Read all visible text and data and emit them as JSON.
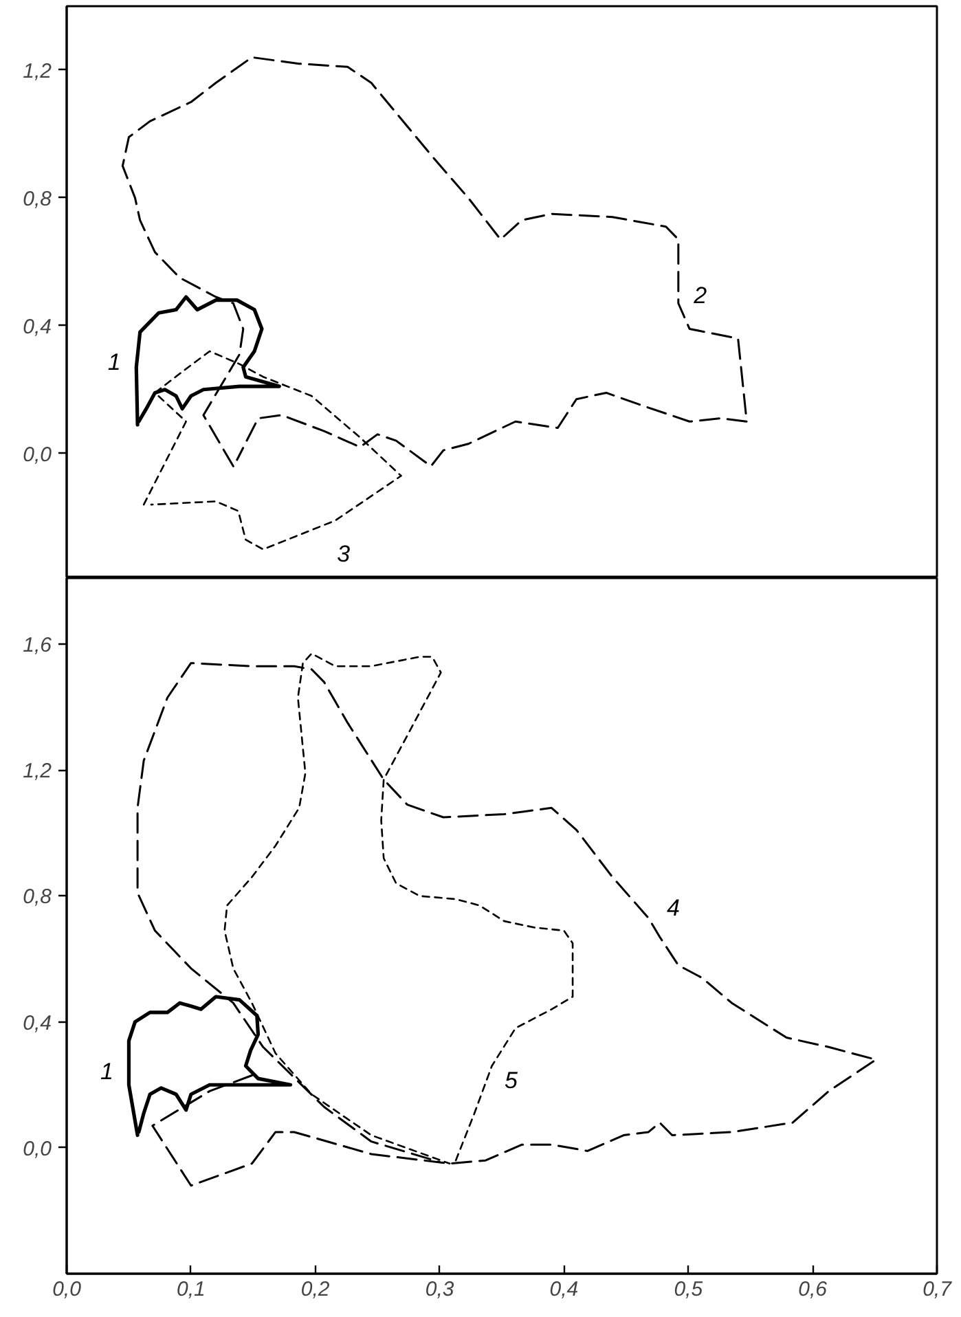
{
  "chart_data": [
    {
      "type": "line",
      "xlim": [
        0,
        0.7
      ],
      "ylim": [
        -0.39,
        1.4
      ],
      "tick_labels": "y",
      "grid": false,
      "yticks": [
        {
          "value": 0,
          "label": "0,0"
        },
        {
          "value": 0.4,
          "label": "0,4"
        },
        {
          "value": 0.8,
          "label": "0,8"
        },
        {
          "value": 1.2,
          "label": "1,2"
        }
      ],
      "series": [
        {
          "name": "1",
          "color": "#000000",
          "line_style": "solid",
          "x": [
            0.057,
            0.056,
            0.059,
            0.074,
            0.088,
            0.096,
            0.105,
            0.12,
            0.137,
            0.151,
            0.157,
            0.151,
            0.142,
            0.144,
            0.171,
            0.139,
            0.11,
            0.1,
            0.093,
            0.088,
            0.079,
            0.071,
            0.064,
            0.058
          ],
          "values": [
            0.09,
            0.27,
            0.38,
            0.44,
            0.45,
            0.49,
            0.45,
            0.48,
            0.48,
            0.45,
            0.39,
            0.32,
            0.27,
            0.24,
            0.21,
            0.21,
            0.2,
            0.18,
            0.14,
            0.18,
            0.2,
            0.19,
            0.14,
            0.1
          ]
        },
        {
          "name": "2",
          "color": "#000000",
          "line_style": "dashed",
          "x": [
            0.134,
            0.11,
            0.139,
            0.142,
            0.134,
            0.12,
            0.091,
            0.071,
            0.059,
            0.055,
            0.045,
            0.05,
            0.067,
            0.1,
            0.12,
            0.149,
            0.187,
            0.226,
            0.245,
            0.294,
            0.323,
            0.349,
            0.366,
            0.39,
            0.439,
            0.482,
            0.492,
            0.492,
            0.501,
            0.54,
            0.547,
            0.526,
            0.501,
            0.463,
            0.434,
            0.41,
            0.395,
            0.361,
            0.323,
            0.303,
            0.293,
            0.265,
            0.25,
            0.236,
            0.207,
            0.173,
            0.154,
            0.137
          ],
          "values": [
            -0.04,
            0.12,
            0.31,
            0.39,
            0.47,
            0.49,
            0.55,
            0.63,
            0.73,
            0.8,
            0.9,
            0.99,
            1.04,
            1.1,
            1.16,
            1.24,
            1.22,
            1.21,
            1.16,
            0.93,
            0.8,
            0.67,
            0.73,
            0.75,
            0.74,
            0.71,
            0.67,
            0.47,
            0.39,
            0.36,
            0.1,
            0.11,
            0.1,
            0.15,
            0.19,
            0.17,
            0.08,
            0.1,
            0.03,
            0.01,
            -0.04,
            0.04,
            0.06,
            0.02,
            0.07,
            0.12,
            0.11,
            -0.02
          ]
        },
        {
          "name": "3",
          "color": "#000000",
          "line_style": "dotted",
          "x": [
            0.062,
            0.096,
            0.071,
            0.091,
            0.115,
            0.139,
            0.158,
            0.197,
            0.236,
            0.269,
            0.216,
            0.158,
            0.144,
            0.138,
            0.12,
            0.068
          ],
          "values": [
            -0.16,
            0.1,
            0.19,
            0.25,
            0.32,
            0.28,
            0.24,
            0.18,
            0.05,
            -0.07,
            -0.21,
            -0.3,
            -0.27,
            -0.18,
            -0.15,
            -0.16
          ]
        }
      ]
    },
    {
      "type": "line",
      "xlim": [
        0,
        0.7
      ],
      "ylim": [
        -0.4,
        1.81
      ],
      "grid": false,
      "xticks": [
        {
          "value": 0,
          "label": "0,0"
        },
        {
          "value": 0.1,
          "label": "0,1"
        },
        {
          "value": 0.2,
          "label": "0,2"
        },
        {
          "value": 0.3,
          "label": "0,3"
        },
        {
          "value": 0.4,
          "label": "0,4"
        },
        {
          "value": 0.5,
          "label": "0,5"
        },
        {
          "value": 0.6,
          "label": "0,6"
        },
        {
          "value": 0.7,
          "label": "0,7"
        }
      ],
      "yticks": [
        {
          "value": 0,
          "label": "0,0"
        },
        {
          "value": 0.4,
          "label": "0,4"
        },
        {
          "value": 0.8,
          "label": "0,8"
        },
        {
          "value": 1.2,
          "label": "1,2"
        },
        {
          "value": 1.6,
          "label": "1,6"
        }
      ],
      "series": [
        {
          "name": "1",
          "color": "#000000",
          "line_style": "solid",
          "x": [
            0.057,
            0.05,
            0.05,
            0.055,
            0.067,
            0.081,
            0.091,
            0.1,
            0.108,
            0.12,
            0.139,
            0.153,
            0.154,
            0.148,
            0.144,
            0.154,
            0.18,
            0.149,
            0.115,
            0.1,
            0.096,
            0.088,
            0.076,
            0.067,
            0.062,
            0.058
          ],
          "values": [
            0.04,
            0.2,
            0.34,
            0.4,
            0.43,
            0.43,
            0.46,
            0.45,
            0.44,
            0.48,
            0.47,
            0.42,
            0.36,
            0.31,
            0.26,
            0.22,
            0.2,
            0.2,
            0.2,
            0.17,
            0.12,
            0.17,
            0.19,
            0.17,
            0.11,
            0.05
          ]
        },
        {
          "name": "4",
          "color": "#000000",
          "line_style": "dashed",
          "x": [
            0.149,
            0.115,
            0.069,
            0.1,
            0.149,
            0.168,
            0.183,
            0.245,
            0.308,
            0.337,
            0.366,
            0.39,
            0.419,
            0.448,
            0.468,
            0.477,
            0.487,
            0.535,
            0.584,
            0.613,
            0.651,
            0.613,
            0.579,
            0.535,
            0.511,
            0.492,
            0.477,
            0.468,
            0.439,
            0.41,
            0.39,
            0.352,
            0.303,
            0.274,
            0.255,
            0.226,
            0.207,
            0.197,
            0.183,
            0.149,
            0.1,
            0.081,
            0.062,
            0.057,
            0.057,
            0.071,
            0.1,
            0.134,
            0.158,
            0.207,
            0.245,
            0.3
          ],
          "values": [
            0.23,
            0.18,
            0.07,
            -0.12,
            -0.05,
            0.05,
            0.05,
            -0.02,
            -0.05,
            -0.04,
            0.01,
            0.01,
            -0.01,
            0.04,
            0.05,
            0.08,
            0.04,
            0.05,
            0.08,
            0.18,
            0.28,
            0.32,
            0.35,
            0.46,
            0.54,
            0.58,
            0.67,
            0.73,
            0.86,
            1.01,
            1.08,
            1.06,
            1.05,
            1.09,
            1.17,
            1.35,
            1.48,
            1.52,
            1.53,
            1.53,
            1.54,
            1.43,
            1.23,
            1.08,
            0.81,
            0.69,
            0.57,
            0.46,
            0.32,
            0.13,
            0.02,
            -0.045
          ]
        },
        {
          "name": "5",
          "color": "#000000",
          "line_style": "dotted",
          "x": [
            0.313,
            0.328,
            0.342,
            0.361,
            0.39,
            0.407,
            0.407,
            0.4,
            0.376,
            0.352,
            0.332,
            0.313,
            0.284,
            0.265,
            0.255,
            0.253,
            0.255,
            0.274,
            0.301,
            0.294,
            0.284,
            0.245,
            0.216,
            0.197,
            0.19,
            0.186,
            0.192,
            0.187,
            0.168,
            0.149,
            0.129,
            0.127,
            0.134,
            0.149,
            0.168,
            0.197,
            0.245,
            0.308
          ],
          "values": [
            -0.04,
            0.11,
            0.26,
            0.38,
            0.44,
            0.48,
            0.65,
            0.69,
            0.7,
            0.72,
            0.77,
            0.79,
            0.8,
            0.84,
            0.92,
            1.04,
            1.17,
            1.31,
            1.51,
            1.56,
            1.56,
            1.53,
            1.53,
            1.57,
            1.54,
            1.43,
            1.19,
            1.08,
            0.96,
            0.86,
            0.77,
            0.69,
            0.57,
            0.46,
            0.3,
            0.17,
            0.04,
            -0.05
          ]
        }
      ]
    }
  ]
}
